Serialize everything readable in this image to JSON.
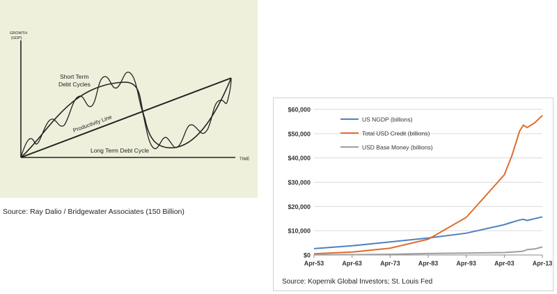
{
  "left_diagram": {
    "y_axis_label_line1": "GROWTH",
    "y_axis_label_line2": "(GDP)",
    "x_axis_label": "TIME",
    "short_term_label_line1": "Short Term",
    "short_term_label_line2": "Debt Cycles",
    "productivity_label": "Productivity Line",
    "long_term_label": "Long Term Debt Cycle",
    "source": "Source: Ray Dalio / Bridgewater Associates (150 Billion)"
  },
  "chart_data": {
    "type": "line",
    "x": [
      1953,
      1963,
      1973,
      1983,
      1993,
      2003,
      2005,
      2007,
      2008,
      2009,
      2011,
      2013
    ],
    "xticks": [
      1953,
      1963,
      1973,
      1983,
      1993,
      2003,
      2013
    ],
    "xlim": [
      1953,
      2013
    ],
    "xtick_labels": [
      "Apr-53",
      "Apr-63",
      "Apr-73",
      "Apr-83",
      "Apr-93",
      "Apr-03",
      "Apr-13"
    ],
    "ylim": [
      0,
      60000
    ],
    "yticks": [
      0,
      10000,
      20000,
      30000,
      40000,
      50000,
      60000
    ],
    "ytick_labels": [
      "$0",
      "$10,000",
      "$20,000",
      "$30,000",
      "$40,000",
      "$50,000",
      "$60,000"
    ],
    "legend_position": "top-left",
    "series": [
      {
        "name": "US NGDP (billions)",
        "color": "#4f81bd",
        "values": [
          2600,
          3800,
          5400,
          7000,
          9000,
          12500,
          13500,
          14400,
          14700,
          14200,
          15000,
          15700
        ]
      },
      {
        "name": "Total USD Credit (billions)",
        "color": "#e06c2e",
        "values": [
          500,
          1200,
          2800,
          6500,
          15500,
          33000,
          41000,
          51000,
          53500,
          52500,
          54500,
          57500
        ]
      },
      {
        "name": "USD Base Money (billions)",
        "color": "#9e9e9e",
        "values": [
          100,
          150,
          300,
          600,
          800,
          1000,
          1200,
          1400,
          1600,
          2200,
          2500,
          3300
        ]
      }
    ]
  },
  "right_source": "Source: Kopernik Global Investors; St. Louis Fed"
}
